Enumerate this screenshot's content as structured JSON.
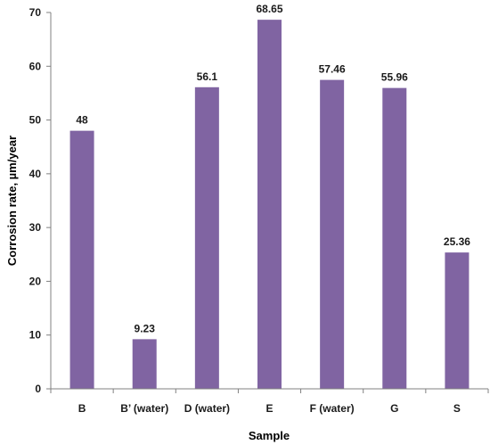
{
  "chart_data": {
    "type": "bar",
    "xlabel": "Sample",
    "ylabel": "Corrosion rate, µm/year",
    "categories": [
      "B",
      "B’ (water)",
      "D (water)",
      "E",
      "F (water)",
      "G",
      "S"
    ],
    "values": [
      48,
      9.23,
      56.1,
      68.65,
      57.46,
      55.96,
      25.36
    ],
    "data_labels": [
      "48",
      "9.23",
      "56.1",
      "68.65",
      "57.46",
      "55.96",
      "25.36"
    ],
    "ylim": [
      0,
      70
    ],
    "yticks": [
      "0",
      "10",
      "20",
      "30",
      "40",
      "50",
      "60",
      "70"
    ],
    "bar_color": "#8064a2",
    "grid": false,
    "legend": "none"
  }
}
